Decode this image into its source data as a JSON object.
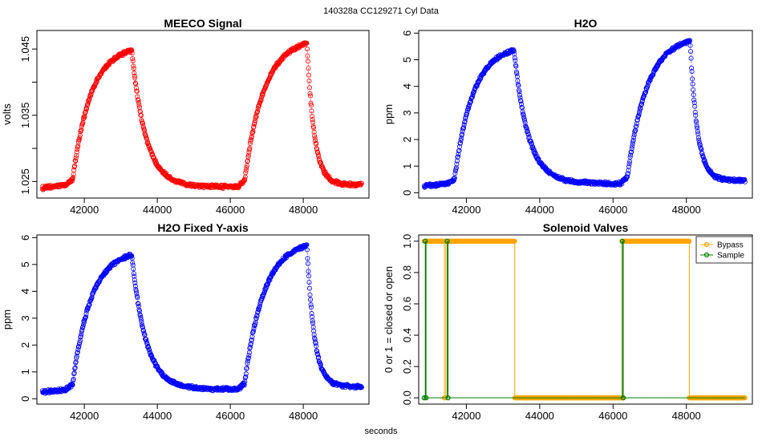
{
  "suptitle": "140328a    CC129271    Cyl Data",
  "xlabel": "seconds",
  "chart_data": [
    {
      "id": "meeco",
      "type": "scatter",
      "title": "MEECO Signal",
      "ylabel": "volts",
      "color": "#ff0000",
      "xlim": [
        40700,
        49800
      ],
      "ylim": [
        1.0225,
        1.0478
      ],
      "xticks": [
        42000,
        44000,
        46000,
        48000
      ],
      "yticks": [
        1.025,
        1.03,
        1.035,
        1.04,
        1.045
      ],
      "ytick_labels": [
        "1.025",
        "",
        "1.035",
        "",
        "1.045"
      ],
      "x_range": [
        40850,
        49600
      ],
      "segments": [
        {
          "x0": 40850,
          "x1": 41500,
          "y0": 1.024,
          "y1": 1.0245,
          "shape": "flat"
        },
        {
          "x0": 41500,
          "x1": 43300,
          "y0": 1.0245,
          "y1": 1.0448,
          "shape": "rise"
        },
        {
          "x0": 43300,
          "x1": 46200,
          "y0": 1.0448,
          "y1": 1.0242,
          "shape": "decay"
        },
        {
          "x0": 46200,
          "x1": 48100,
          "y0": 1.0242,
          "y1": 1.0458,
          "shape": "rise"
        },
        {
          "x0": 48100,
          "x1": 49600,
          "y0": 1.0458,
          "y1": 1.0245,
          "shape": "decay"
        }
      ]
    },
    {
      "id": "h2o",
      "type": "scatter",
      "title": "H2O",
      "ylabel": "ppm",
      "color": "#0000ff",
      "xlim": [
        40700,
        49800
      ],
      "ylim": [
        -0.2,
        6.1
      ],
      "xticks": [
        42000,
        44000,
        46000,
        48000
      ],
      "yticks": [
        0,
        1,
        2,
        3,
        4,
        5,
        6
      ],
      "ytick_labels": [
        "0",
        "1",
        "2",
        "3",
        "4",
        "5",
        "6"
      ],
      "x_range": [
        40850,
        49600
      ],
      "segments": [
        {
          "x0": 40850,
          "x1": 41500,
          "y0": 0.25,
          "y1": 0.35,
          "shape": "flat"
        },
        {
          "x0": 41500,
          "x1": 43300,
          "y0": 0.35,
          "y1": 5.35,
          "shape": "rise"
        },
        {
          "x0": 43300,
          "x1": 46200,
          "y0": 5.35,
          "y1": 0.35,
          "shape": "decay"
        },
        {
          "x0": 46200,
          "x1": 48100,
          "y0": 0.35,
          "y1": 5.7,
          "shape": "rise"
        },
        {
          "x0": 48100,
          "x1": 49600,
          "y0": 5.7,
          "y1": 0.45,
          "shape": "decay"
        }
      ]
    },
    {
      "id": "h2o_fixed",
      "type": "scatter",
      "title": "H2O Fixed Y-axis",
      "ylabel": "ppm",
      "color": "#0000ff",
      "xlim": [
        40700,
        49800
      ],
      "ylim": [
        -0.2,
        6.1
      ],
      "xticks": [
        42000,
        44000,
        46000,
        48000
      ],
      "yticks": [
        0,
        1,
        2,
        3,
        4,
        5,
        6
      ],
      "ytick_labels": [
        "0",
        "1",
        "2",
        "3",
        "4",
        "5",
        "6"
      ],
      "x_range": [
        40850,
        49600
      ],
      "segments": [
        {
          "x0": 40850,
          "x1": 41500,
          "y0": 0.25,
          "y1": 0.35,
          "shape": "flat"
        },
        {
          "x0": 41500,
          "x1": 43300,
          "y0": 0.35,
          "y1": 5.35,
          "shape": "rise"
        },
        {
          "x0": 43300,
          "x1": 46200,
          "y0": 5.35,
          "y1": 0.35,
          "shape": "decay"
        },
        {
          "x0": 46200,
          "x1": 48100,
          "y0": 0.35,
          "y1": 5.7,
          "shape": "rise"
        },
        {
          "x0": 48100,
          "x1": 49600,
          "y0": 5.7,
          "y1": 0.45,
          "shape": "decay"
        }
      ]
    },
    {
      "id": "valves",
      "type": "line",
      "title": "Solenoid Valves",
      "ylabel": "0 or 1 = closed or open",
      "xlim": [
        40700,
        49800
      ],
      "ylim": [
        -0.04,
        1.04
      ],
      "xticks": [
        42000,
        44000,
        46000,
        48000
      ],
      "yticks": [
        0,
        0.2,
        0.4,
        0.6,
        0.8,
        1.0
      ],
      "ytick_labels": [
        "0.0",
        "0.2",
        "0.4",
        "0.6",
        "0.8",
        "1.0"
      ],
      "legend": {
        "position": "top-right",
        "entries": [
          "Bypass",
          "Sample"
        ]
      },
      "series": [
        {
          "name": "Bypass",
          "color": "#ffa500",
          "steps": [
            [
              40850,
              1
            ],
            [
              41400,
              0
            ],
            [
              41440,
              1
            ],
            [
              43320,
              0
            ],
            [
              46270,
              1
            ],
            [
              48080,
              0
            ],
            [
              49600,
              0
            ]
          ]
        },
        {
          "name": "Sample",
          "color": "#008000",
          "steps": [
            [
              40850,
              0
            ],
            [
              40880,
              1
            ],
            [
              40900,
              0
            ],
            [
              41480,
              1
            ],
            [
              41500,
              0
            ],
            [
              46250,
              1
            ],
            [
              46280,
              0
            ],
            [
              49600,
              0
            ]
          ]
        }
      ]
    }
  ]
}
